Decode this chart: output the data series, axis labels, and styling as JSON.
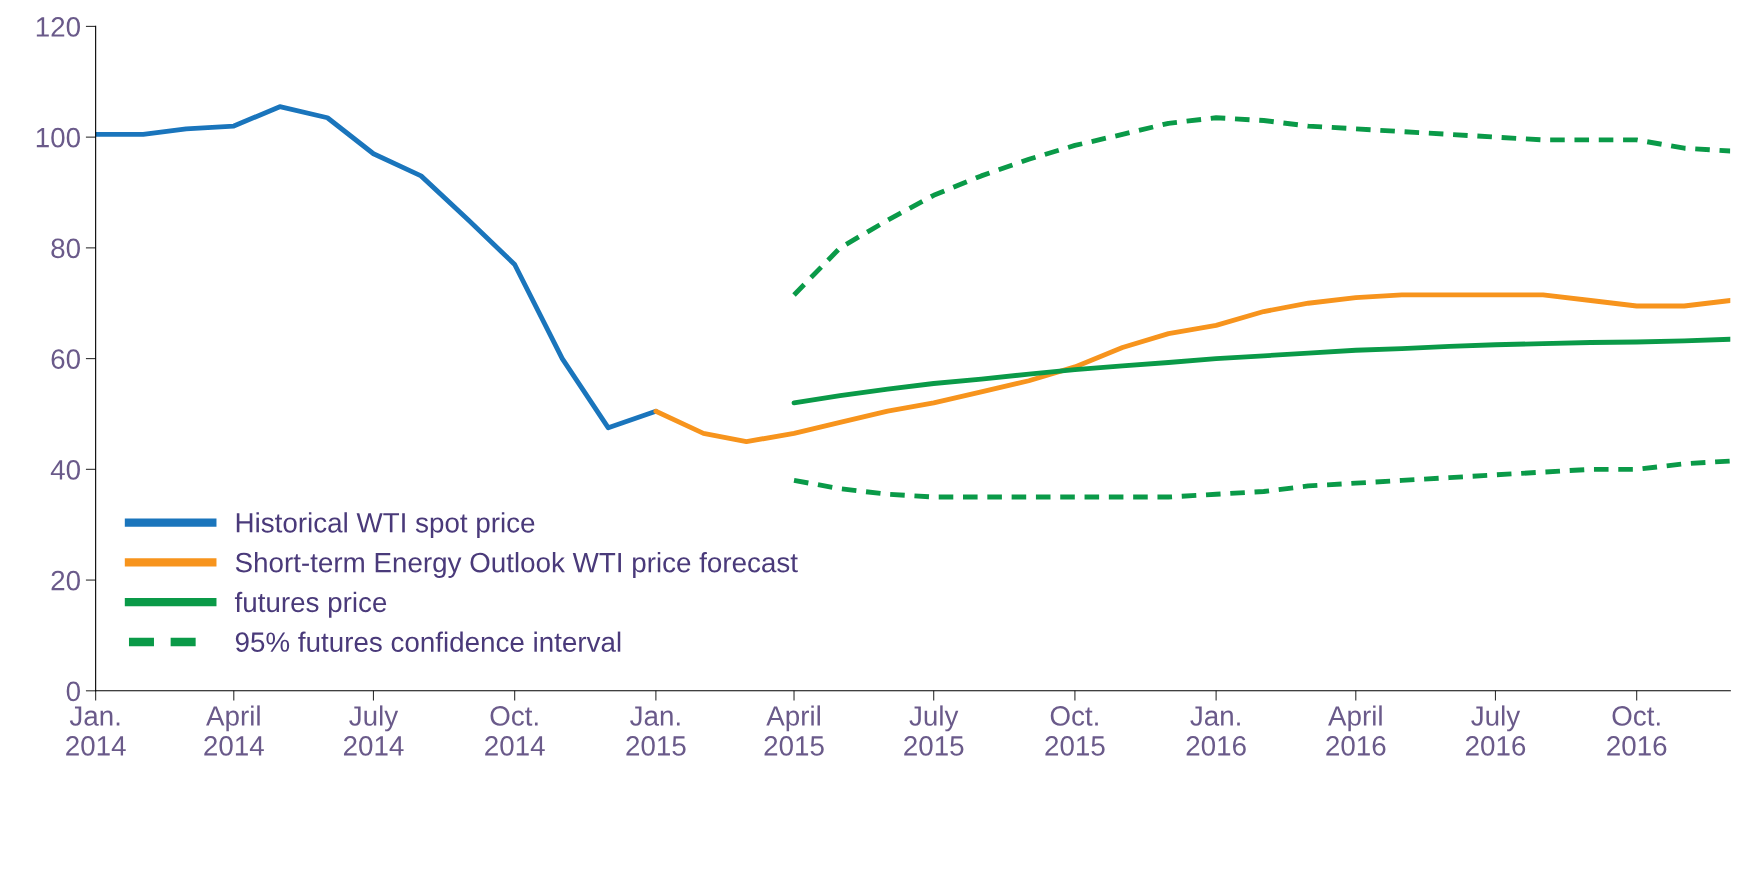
{
  "chart_data": {
    "type": "line",
    "x": [
      "2014-01",
      "2014-02",
      "2014-03",
      "2014-04",
      "2014-05",
      "2014-06",
      "2014-07",
      "2014-08",
      "2014-09",
      "2014-10",
      "2014-11",
      "2014-12",
      "2015-01",
      "2015-02",
      "2015-03",
      "2015-04",
      "2015-05",
      "2015-06",
      "2015-07",
      "2015-08",
      "2015-09",
      "2015-10",
      "2015-11",
      "2015-12",
      "2016-01",
      "2016-02",
      "2016-03",
      "2016-04",
      "2016-05",
      "2016-06",
      "2016-07",
      "2016-08",
      "2016-09",
      "2016-10",
      "2016-11",
      "2016-12"
    ],
    "series": [
      {
        "name": "Historical WTI spot price",
        "color": "#1a75bc",
        "line_style": "solid",
        "values": [
          100.5,
          100.5,
          101.5,
          102,
          105.5,
          103.5,
          97,
          93,
          85,
          77,
          60,
          47.5,
          50.5,
          null,
          null,
          null,
          null,
          null,
          null,
          null,
          null,
          null,
          null,
          null,
          null,
          null,
          null,
          null,
          null,
          null,
          null,
          null,
          null,
          null,
          null,
          null
        ]
      },
      {
        "name": "Short-term Energy Outlook WTI price forecast",
        "color": "#f7941d",
        "line_style": "solid",
        "values": [
          null,
          null,
          null,
          null,
          null,
          null,
          null,
          null,
          null,
          null,
          null,
          null,
          50.5,
          46.5,
          45,
          46.5,
          48.5,
          50.5,
          52,
          54,
          56,
          58.5,
          62,
          64.5,
          66,
          68.5,
          70,
          71,
          71.5,
          71.5,
          71.5,
          71.5,
          70.5,
          69.5,
          69.5,
          70.5
        ]
      },
      {
        "name": "futures price",
        "color": "#0a9a48",
        "line_style": "solid",
        "values": [
          null,
          null,
          null,
          null,
          null,
          null,
          null,
          null,
          null,
          null,
          null,
          null,
          null,
          null,
          null,
          52,
          53.3,
          54.5,
          55.5,
          56.3,
          57.2,
          58,
          58.7,
          59.3,
          60,
          60.5,
          61,
          61.5,
          61.8,
          62.2,
          62.5,
          62.7,
          62.9,
          63,
          63.2,
          63.5
        ]
      },
      {
        "name": "95% futures confidence interval",
        "color": "#0a9a48",
        "line_style": "dashed",
        "values": [
          null,
          null,
          null,
          null,
          null,
          null,
          null,
          null,
          null,
          null,
          null,
          null,
          null,
          null,
          null,
          71.5,
          80,
          85,
          89.5,
          93,
          96,
          98.5,
          100.5,
          102.5,
          103.5,
          103,
          102,
          101.5,
          101,
          100.5,
          100,
          99.5,
          99.5,
          99.5,
          98,
          97.5
        ]
      },
      {
        "color": "#0a9a48",
        "line_style": "dashed",
        "values": [
          null,
          null,
          null,
          null,
          null,
          null,
          null,
          null,
          null,
          null,
          null,
          null,
          null,
          null,
          null,
          38,
          36.5,
          35.5,
          35,
          35,
          35,
          35,
          35,
          35,
          35.5,
          36,
          37,
          37.5,
          38,
          38.5,
          39,
          39.5,
          40,
          40,
          41,
          41.5
        ]
      }
    ],
    "xlim": [
      "2014-01",
      "2016-12"
    ],
    "xticks": [
      {
        "value": "2014-01",
        "label": "Jan.\n2014"
      },
      {
        "value": "2014-04",
        "label": "April\n2014"
      },
      {
        "value": "2014-07",
        "label": "July\n2014"
      },
      {
        "value": "2014-10",
        "label": "Oct.\n2014"
      },
      {
        "value": "2015-01",
        "label": "Jan.\n2015"
      },
      {
        "value": "2015-04",
        "label": "April\n2015"
      },
      {
        "value": "2015-07",
        "label": "July\n2015"
      },
      {
        "value": "2015-10",
        "label": "Oct.\n2015"
      },
      {
        "value": "2016-01",
        "label": "Jan.\n2016"
      },
      {
        "value": "2016-04",
        "label": "April\n2016"
      },
      {
        "value": "2016-07",
        "label": "July\n2016"
      },
      {
        "value": "2016-10",
        "label": "Oct.\n2016"
      }
    ],
    "ylim": [
      0,
      120
    ],
    "yticks": [
      0,
      20,
      40,
      60,
      80,
      100,
      120
    ],
    "grid": false,
    "legend": "bottom left",
    "marker": "none"
  }
}
